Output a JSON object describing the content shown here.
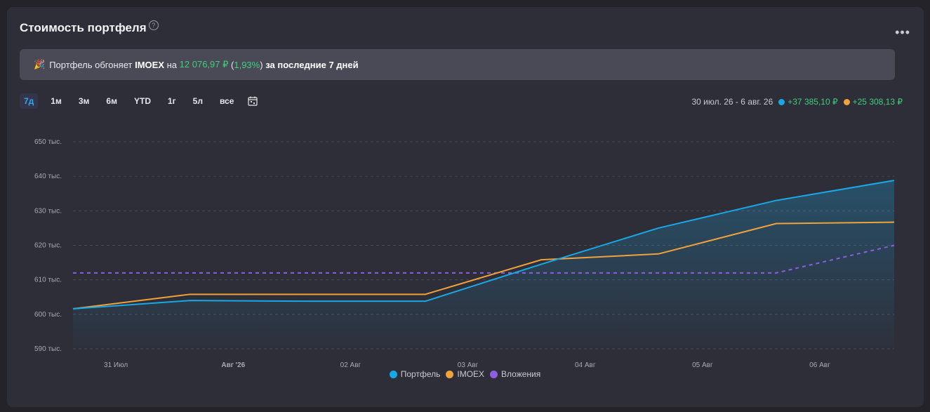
{
  "header": {
    "title": "Стоимость портфеля",
    "help_icon": "?",
    "more_icon": "•••"
  },
  "banner": {
    "party_icon": "🎉",
    "prefix": "Портфель обгоняет",
    "index": "IMOEX",
    "on": "на",
    "amount": "12 076,97 ₽",
    "open_paren": "(",
    "percent": "1,93%",
    "close_paren": ")",
    "suffix": "за последние 7 дней"
  },
  "periods": [
    "7д",
    "1м",
    "3м",
    "6м",
    "YTD",
    "1г",
    "5л",
    "все"
  ],
  "active_period": "7д",
  "range": {
    "dates": "30 июл. 26 - 6 авг. 26",
    "portfolio_change": "+37 385,10 ₽",
    "imoex_change": "+25 308,13 ₽"
  },
  "colors": {
    "portfolio": "#19a8e6",
    "imoex": "#f0a23c",
    "investments": "#8b5fe0",
    "positive": "#3ed07c"
  },
  "chart_data": {
    "type": "line",
    "x": [
      "30 Июл",
      "31 Июл",
      "01 Авг",
      "02 Авг",
      "03 Авг",
      "04 Авг",
      "05 Авг",
      "06 Авг"
    ],
    "x_tick_labels": [
      "31 Июл",
      "Авг '26",
      "02 Авг",
      "03 Авг",
      "04 Авг",
      "05 Авг",
      "06 Авг"
    ],
    "y_tick_labels": [
      "650 тыс.",
      "640 тыс.",
      "630 тыс.",
      "620 тыс.",
      "610 тыс.",
      "600 тыс.",
      "590 тыс."
    ],
    "y_ticks": [
      650000,
      640000,
      630000,
      620000,
      610000,
      600000,
      590000
    ],
    "ylim": [
      590000,
      650000
    ],
    "grid": true,
    "legend_position": "bottom",
    "series": [
      {
        "name": "Портфель",
        "values": [
          601600,
          604000,
          603800,
          603800,
          614500,
          625000,
          633000,
          638800
        ]
      },
      {
        "name": "IMOEX",
        "values": [
          601600,
          605800,
          605800,
          605800,
          615800,
          617500,
          626300,
          626700
        ]
      },
      {
        "name": "Вложения",
        "values": [
          612000,
          612000,
          612000,
          612000,
          612000,
          612000,
          612000,
          620000
        ]
      }
    ]
  }
}
